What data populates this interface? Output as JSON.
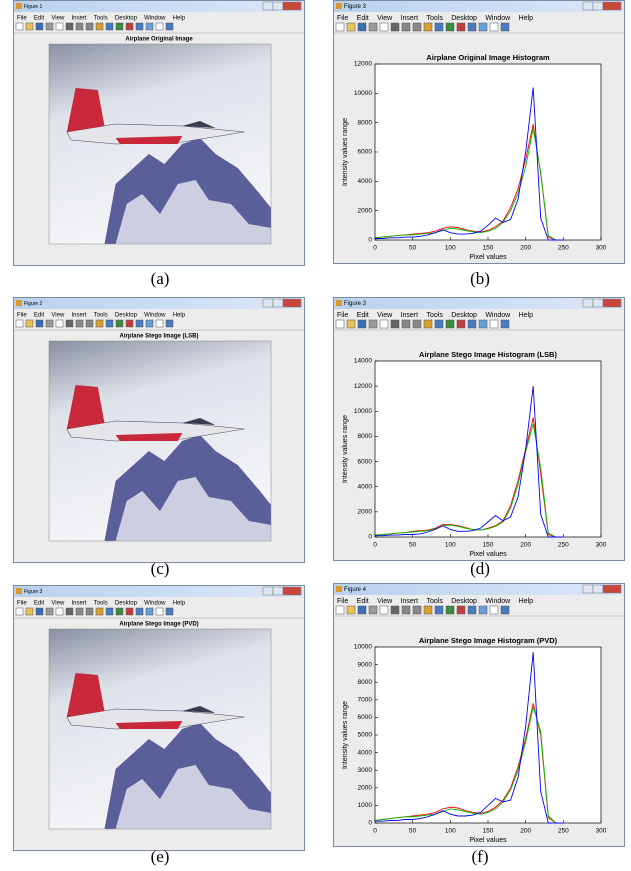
{
  "menu": [
    "File",
    "Edit",
    "View",
    "Insert",
    "Tools",
    "Desktop",
    "Window",
    "Help"
  ],
  "windows": [
    {
      "title": "Figure 1",
      "axes_title": "Airplane Original Image",
      "caption": "(a)"
    },
    {
      "title": "Figure 2",
      "axes_title": "Airplane Stego Image (LSB)",
      "caption": "(c)"
    },
    {
      "title": "Figure 3",
      "axes_title": "Airplane Stego Image (PVD)",
      "caption": "(e)"
    }
  ],
  "chart_windows": [
    {
      "title": "Figure 3",
      "caption": "(b)"
    },
    {
      "title": "Figure 3",
      "caption": "(d)"
    },
    {
      "title": "Figure 4",
      "caption": "(f)"
    }
  ],
  "chart_data": [
    {
      "type": "line",
      "title": "Airplane Original Image Histogram",
      "x_label": "Pixel values",
      "y_label": "Intensity values range",
      "x": [
        0,
        10,
        20,
        30,
        40,
        50,
        60,
        70,
        80,
        90,
        100,
        110,
        120,
        130,
        140,
        150,
        160,
        170,
        180,
        190,
        200,
        210,
        220,
        230,
        240,
        250
      ],
      "series": [
        {
          "color": "#ff0000",
          "values": [
            150,
            200,
            250,
            300,
            350,
            400,
            450,
            500,
            600,
            800,
            900,
            850,
            700,
            600,
            550,
            650,
            900,
            1300,
            2200,
            3500,
            5500,
            7900,
            4500,
            200,
            0,
            0
          ]
        },
        {
          "color": "#00c000",
          "values": [
            150,
            200,
            250,
            300,
            350,
            350,
            400,
            450,
            500,
            650,
            800,
            750,
            650,
            550,
            500,
            600,
            800,
            1200,
            2000,
            3200,
            5000,
            7600,
            4600,
            300,
            0,
            0
          ]
        },
        {
          "color": "#0000ff",
          "values": [
            100,
            100,
            150,
            150,
            200,
            200,
            250,
            350,
            500,
            700,
            500,
            400,
            400,
            450,
            600,
            1000,
            1500,
            1200,
            1400,
            2800,
            6000,
            10400,
            1500,
            0,
            0,
            0
          ]
        }
      ],
      "xlim": [
        0,
        300
      ],
      "xticks": [
        0,
        50,
        100,
        150,
        200,
        250,
        300
      ],
      "ylim": [
        0,
        12000
      ],
      "yticks": [
        0,
        2000,
        4000,
        6000,
        8000,
        10000,
        12000
      ]
    },
    {
      "type": "line",
      "title": "Airplane Stego Image Histogram (LSB)",
      "x_label": "Pixel values",
      "y_label": "Intensity values range",
      "x": [
        0,
        10,
        20,
        30,
        40,
        50,
        60,
        70,
        80,
        90,
        100,
        110,
        120,
        130,
        140,
        150,
        160,
        170,
        180,
        190,
        200,
        210,
        220,
        230,
        240,
        250
      ],
      "series": [
        {
          "color": "#ff0000",
          "values": [
            150,
            200,
            250,
            300,
            350,
            450,
            500,
            550,
            700,
            1000,
            1000,
            900,
            750,
            600,
            550,
            700,
            900,
            1300,
            2500,
            4500,
            7000,
            9500,
            5000,
            200,
            0,
            0
          ]
        },
        {
          "color": "#00c000",
          "values": [
            150,
            200,
            250,
            300,
            350,
            400,
            450,
            500,
            650,
            900,
            950,
            850,
            700,
            600,
            550,
            650,
            850,
            1200,
            2300,
            4200,
            6800,
            9000,
            5500,
            300,
            0,
            0
          ]
        },
        {
          "color": "#0000ff",
          "values": [
            100,
            100,
            150,
            150,
            200,
            200,
            250,
            400,
            600,
            900,
            600,
            450,
            450,
            500,
            700,
            1200,
            1700,
            1300,
            1600,
            3200,
            7000,
            12000,
            1800,
            0,
            0,
            0
          ]
        }
      ],
      "xlim": [
        0,
        300
      ],
      "xticks": [
        0,
        50,
        100,
        150,
        200,
        250,
        300
      ],
      "ylim": [
        0,
        14000
      ],
      "yticks": [
        0,
        2000,
        4000,
        6000,
        8000,
        10000,
        12000,
        14000
      ]
    },
    {
      "type": "line",
      "title": "Airplane Stego Image Histogram (PVD)",
      "x_label": "Pixel values",
      "y_label": "Intensity values range",
      "x": [
        0,
        10,
        20,
        30,
        40,
        50,
        60,
        70,
        80,
        90,
        100,
        110,
        120,
        130,
        140,
        150,
        160,
        170,
        180,
        190,
        200,
        210,
        220,
        230,
        240,
        250
      ],
      "series": [
        {
          "color": "#ff0000",
          "values": [
            150,
            200,
            250,
            300,
            350,
            400,
            450,
            500,
            600,
            800,
            900,
            850,
            700,
            600,
            550,
            650,
            900,
            1300,
            2000,
            3200,
            4800,
            6800,
            5000,
            300,
            0,
            0
          ]
        },
        {
          "color": "#00c000",
          "values": [
            150,
            200,
            250,
            300,
            350,
            350,
            400,
            450,
            500,
            650,
            800,
            750,
            650,
            550,
            500,
            600,
            800,
            1200,
            1900,
            3000,
            4600,
            6600,
            5200,
            400,
            0,
            0
          ]
        },
        {
          "color": "#0000ff",
          "values": [
            100,
            100,
            150,
            150,
            200,
            200,
            250,
            350,
            500,
            700,
            500,
            400,
            400,
            450,
            600,
            1000,
            1400,
            1200,
            1300,
            2600,
            5500,
            9700,
            1800,
            0,
            0,
            0
          ]
        }
      ],
      "xlim": [
        0,
        300
      ],
      "xticks": [
        0,
        50,
        100,
        150,
        200,
        250,
        300
      ],
      "ylim": [
        0,
        10000
      ],
      "yticks": [
        0,
        1000,
        2000,
        3000,
        4000,
        5000,
        6000,
        7000,
        8000,
        9000,
        10000
      ]
    }
  ]
}
